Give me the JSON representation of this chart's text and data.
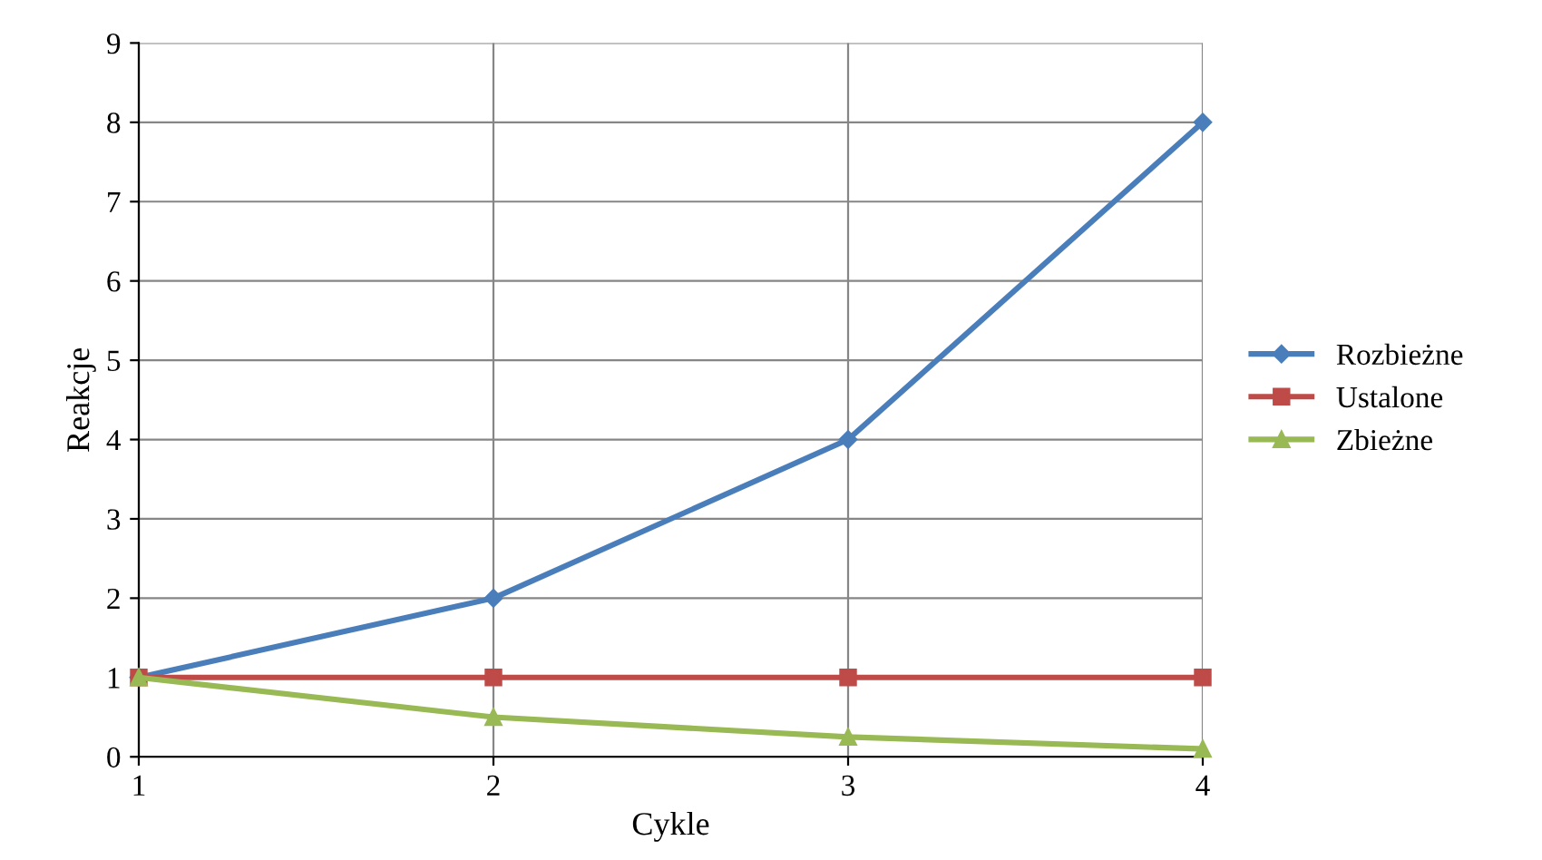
{
  "chart_data": {
    "type": "line",
    "xlabel": "Cykle",
    "ylabel": "Reakcje",
    "x": [
      1,
      2,
      3,
      4
    ],
    "series": [
      {
        "name": "Rozbieżne",
        "color": "#4a7ebb",
        "marker": "diamond",
        "values": [
          1,
          2,
          4,
          8
        ]
      },
      {
        "name": "Ustalone",
        "color": "#be4b48",
        "marker": "square",
        "values": [
          1,
          1,
          1,
          1
        ]
      },
      {
        "name": "Zbieżne",
        "color": "#98b954",
        "marker": "triangle",
        "values": [
          1,
          0.5,
          0.25,
          0.1
        ]
      }
    ],
    "xlim": [
      1,
      4
    ],
    "xticks": [
      1,
      2,
      3,
      4
    ],
    "ylim": [
      0,
      9
    ],
    "yticks": [
      0,
      1,
      2,
      3,
      4,
      5,
      6,
      7,
      8,
      9
    ],
    "grid": true,
    "legend": "right",
    "line_style": "solid"
  }
}
